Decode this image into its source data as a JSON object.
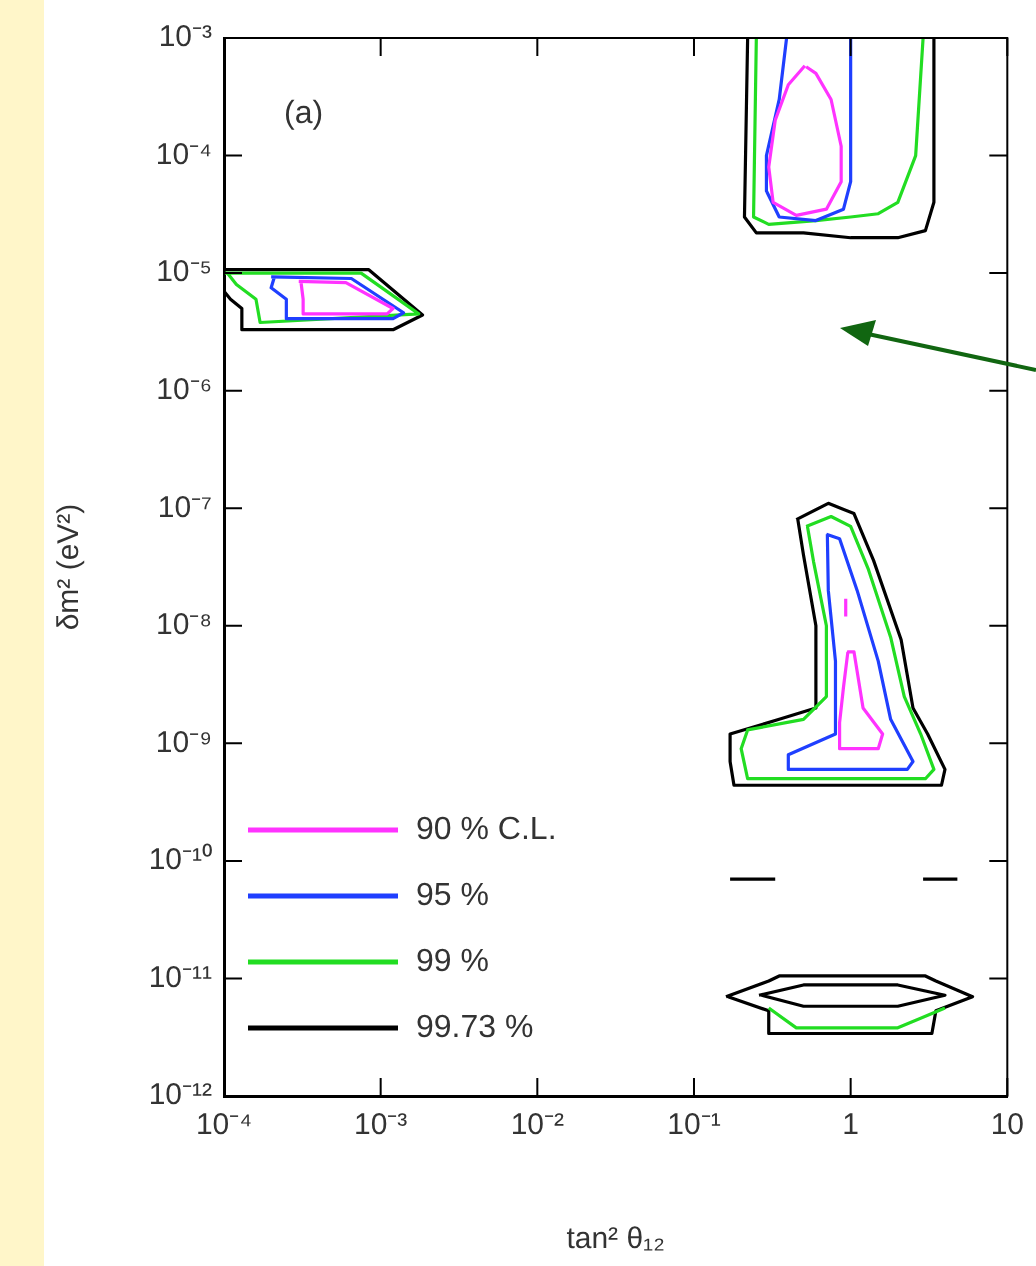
{
  "chart_data": {
    "type": "line",
    "xlabel": "tan² θ₁₂",
    "ylabel": "δm² (eV²)",
    "annotations": [
      "(a)"
    ],
    "log": "xy",
    "grid": false,
    "legend": "bottom left",
    "xlim": [
      0.0001,
      10
    ],
    "xticks": [
      {
        "value": 0.0001,
        "label": "10⁻⁴"
      },
      {
        "value": 0.001,
        "label": "10⁻³"
      },
      {
        "value": 0.01,
        "label": "10⁻²"
      },
      {
        "value": 0.1,
        "label": "10⁻¹"
      },
      1,
      10
    ],
    "ylim": [
      1e-12,
      0.001
    ],
    "yticks": [
      {
        "value": 1e-12,
        "label": "10⁻¹²"
      },
      {
        "value": 1e-11,
        "label": "10⁻¹¹"
      },
      {
        "value": 1e-10,
        "label": "10⁻¹⁰"
      },
      {
        "value": 1e-09,
        "label": "10⁻⁹"
      },
      {
        "value": 1e-08,
        "label": "10⁻⁸"
      },
      {
        "value": 1e-07,
        "label": "10⁻⁷"
      },
      {
        "value": 1e-06,
        "label": "10⁻⁶"
      },
      {
        "value": 1e-05,
        "label": "10⁻⁵"
      },
      {
        "value": 0.0001,
        "label": "10⁻⁴"
      },
      {
        "value": 0.001,
        "label": "10⁻³"
      }
    ],
    "series": [
      {
        "name": "90 % C.L.",
        "color": "#ff33ff",
        "x": [
          0.51,
          0.4,
          0.33,
          0.3,
          0.32,
          0.45,
          0.7,
          0.87,
          0.87,
          0.75,
          0.6,
          0.52,
          null,
          0.0003,
          0.0006,
          0.0012,
          0.0011,
          0.00032,
          0.00032,
          0.00031,
          null,
          0.95,
          1.05,
          1.2,
          1.6,
          1.5,
          0.85,
          0.85,
          0.9,
          0.96,
          null,
          0.93,
          0.93
        ],
        "values": [
          0.00058,
          0.0004,
          0.0002,
          8e-05,
          4e-05,
          3.1e-05,
          3.5e-05,
          6e-05,
          0.00012,
          0.0003,
          0.0005,
          0.00057,
          null,
          8.5e-06,
          8.3e-06,
          5e-06,
          4.5e-06,
          4.5e-06,
          6e-06,
          8.4e-06,
          null,
          6e-09,
          6e-09,
          2e-09,
          1.2e-09,
          9e-10,
          9e-10,
          1.5e-09,
          3e-09,
          6e-09,
          null,
          1.2e-08,
          1.7e-08
        ]
      },
      {
        "name": "95 %",
        "color": "#1f3fff",
        "x": [
          0.39,
          0.35,
          0.29,
          0.29,
          0.35,
          0.6,
          0.9,
          1,
          1,
          null,
          0.0002,
          0.00065,
          0.0014,
          0.0012,
          0.00025,
          0.00025,
          0.0002,
          0.00021,
          null,
          0.7,
          0.85,
          1.1,
          1.5,
          1.8,
          2.5,
          2.3,
          0.4,
          0.4,
          0.8,
          0.8,
          0.72,
          0.71
        ],
        "values": [
          0.001,
          0.0003,
          0.0001,
          5e-05,
          3e-05,
          2.8e-05,
          3.5e-05,
          6e-05,
          0.001,
          null,
          9.3e-06,
          9e-06,
          4.6e-06,
          4.1e-06,
          4.1e-06,
          6e-06,
          7.5e-06,
          9.3e-06,
          null,
          6e-08,
          5.5e-08,
          2e-08,
          5e-09,
          1.6e-09,
          7e-10,
          6e-10,
          6e-10,
          8e-10,
          1.2e-09,
          5e-09,
          2e-08,
          6e-08
        ]
      },
      {
        "name": "99 %",
        "color": "#22dd22",
        "x": [
          0.25,
          0.24,
          0.3,
          0.6,
          1,
          1.5,
          2,
          2.6,
          2.9,
          null,
          0.0001,
          0.00075,
          0.00175,
          0.00017,
          0.00016,
          0.00012,
          0.000105,
          null,
          0.52,
          0.75,
          1,
          1.3,
          1.8,
          2.2,
          2.8,
          3.4,
          3,
          0.22,
          0.2,
          0.22,
          0.5,
          0.7,
          0.7,
          0.58,
          0.53,
          null,
          0.3,
          0.45,
          2,
          4
        ],
        "values": [
          0.001,
          3e-05,
          2.6e-05,
          2.8e-05,
          3e-05,
          3.2e-05,
          4e-05,
          0.0001,
          0.001,
          null,
          1e-05,
          1e-05,
          4.5e-06,
          3.8e-06,
          6e-06,
          8e-06,
          1e-05,
          null,
          7e-08,
          8.5e-08,
          7e-08,
          3e-08,
          8e-09,
          2.5e-09,
          1.2e-09,
          6e-10,
          5e-10,
          5e-10,
          9e-10,
          1.3e-09,
          1.6e-09,
          2.5e-09,
          1e-08,
          3.5e-08,
          7e-08,
          null,
          5.6e-12,
          3.8e-12,
          3.8e-12,
          5.6e-12
        ]
      },
      {
        "name": "99.73 %",
        "color": "#000000",
        "x": [
          0.22,
          0.21,
          0.25,
          0.5,
          1,
          2,
          3,
          3.4,
          3.4,
          null,
          0.0001,
          0.00084,
          0.00185,
          0.0012,
          0.00013,
          0.00013,
          0.00011,
          0.0001,
          null,
          0.45,
          0.72,
          1.05,
          1.4,
          2.1,
          2.5,
          3.1,
          4,
          3.8,
          0.18,
          0.17,
          0.17,
          0.35,
          0.6,
          0.6,
          0.5,
          0.46,
          null,
          0.17,
          0.33,
          null,
          2.9,
          4.8,
          null,
          0.16,
          0.3,
          0.35,
          3,
          3.5,
          6,
          3.5,
          3.3,
          0.3,
          0.3,
          0.165,
          null,
          0.26,
          0.5,
          2,
          4,
          2,
          0.5,
          0.27
        ],
        "values": [
          0.001,
          3e-05,
          2.2e-05,
          2.2e-05,
          2e-05,
          2e-05,
          2.3e-05,
          4e-05,
          0.001,
          null,
          1.07e-05,
          1.07e-05,
          4.4e-06,
          3.3e-06,
          3.3e-06,
          5e-06,
          6e-06,
          7e-06,
          null,
          8e-08,
          1.1e-07,
          9e-08,
          3.6e-08,
          7.6e-09,
          2e-09,
          1.2e-09,
          6e-10,
          4.4e-10,
          4.4e-10,
          7e-10,
          1.2e-09,
          1.6e-09,
          2e-09,
          1e-08,
          4e-08,
          8e-08,
          null,
          7e-11,
          7e-11,
          null,
          7e-11,
          7e-11,
          null,
          7e-12,
          9.5e-12,
          1.05e-11,
          1.05e-11,
          9.5e-12,
          7e-12,
          5.3e-12,
          3.4e-12,
          3.4e-12,
          5.3e-12,
          7e-12,
          null,
          7.2e-12,
          8.8e-12,
          8.8e-12,
          7.2e-12,
          5.8e-12,
          5.8e-12,
          7.2e-12
        ]
      }
    ]
  }
}
